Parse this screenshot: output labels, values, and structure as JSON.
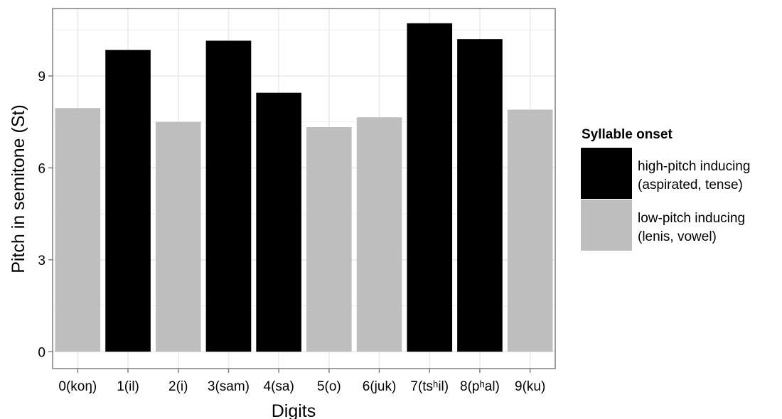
{
  "chart_data": {
    "type": "bar",
    "title": "",
    "xlabel": "Digits",
    "ylabel": "Pitch in semitone (St)",
    "ylim": [
      -0.55,
      11.2
    ],
    "yticks": [
      0,
      3,
      6,
      9
    ],
    "grid": true,
    "legend_position": "right",
    "categories": [
      "0(koŋ)",
      "1(il)",
      "2(i)",
      "3(sam)",
      "4(sa)",
      "5(o)",
      "6(juk)",
      "7(tsʰil)",
      "8(pʰal)",
      "9(ku)"
    ],
    "values": [
      7.95,
      9.85,
      7.5,
      10.15,
      8.45,
      7.33,
      7.65,
      10.72,
      10.2,
      7.9
    ],
    "groups": [
      "low",
      "high",
      "low",
      "high",
      "high",
      "low",
      "low",
      "high",
      "high",
      "low"
    ],
    "legend": {
      "title": "Syllable onset",
      "entries": [
        {
          "key": "high",
          "line1": "high-pitch inducing",
          "line2": "(aspirated, tense)",
          "color": "#000000"
        },
        {
          "key": "low",
          "line1": "low-pitch inducing",
          "line2": "(lenis, vowel)",
          "color": "#bebebe"
        }
      ]
    },
    "colors": {
      "high": "#000000",
      "low": "#bebebe",
      "grid": "#ebebeb",
      "panel_border": "#7f7f7f"
    }
  }
}
